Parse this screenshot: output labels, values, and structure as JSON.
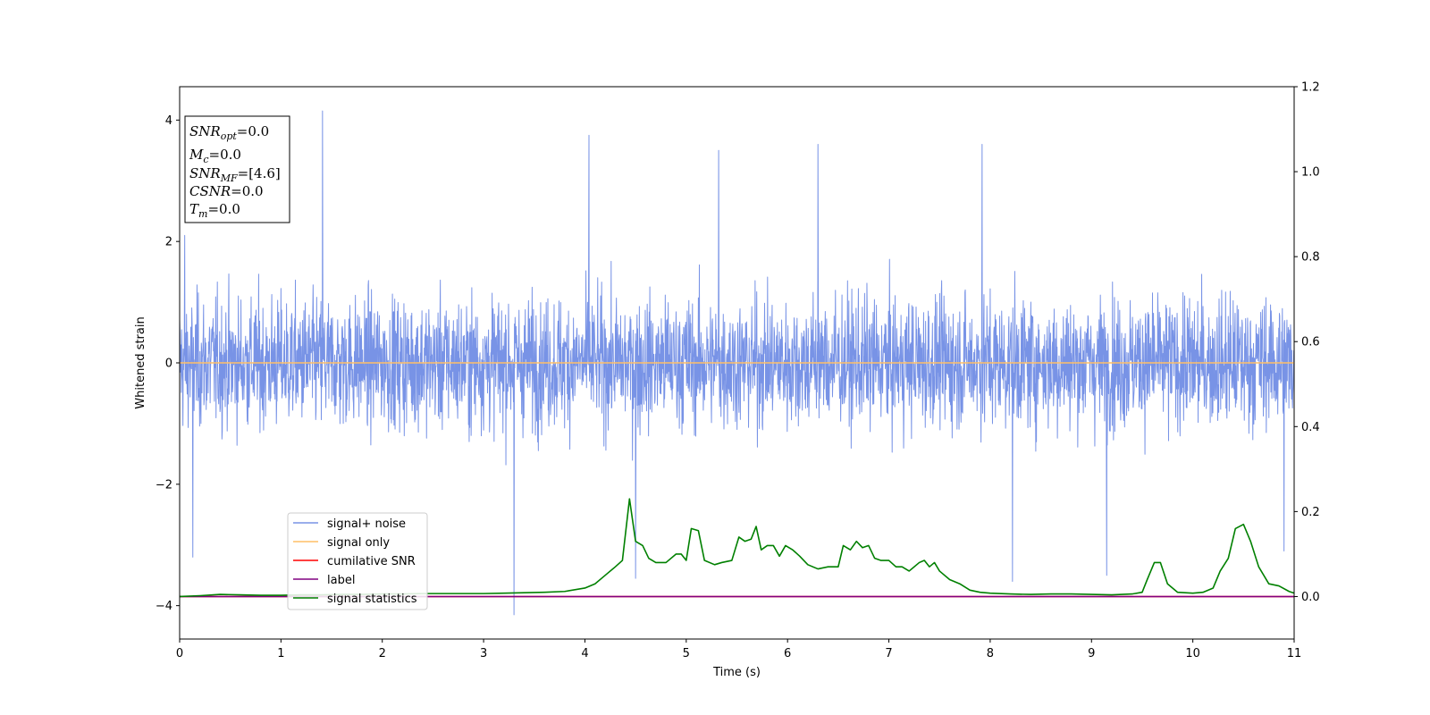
{
  "chart_data": {
    "type": "line",
    "xlabel": "Time (s)",
    "ylabel": "Whitened strain",
    "xlim": [
      0,
      11
    ],
    "ylim": [
      -4.55,
      4.55
    ],
    "y2lim": [
      -0.1,
      1.2
    ],
    "x_ticks": [
      "0",
      "1",
      "2",
      "3",
      "4",
      "5",
      "6",
      "7",
      "8",
      "9",
      "10",
      "11"
    ],
    "y_ticks": [
      "−4",
      "−2",
      "0",
      "2",
      "4"
    ],
    "y2_ticks": [
      "0.0",
      "0.2",
      "0.4",
      "0.6",
      "0.8",
      "1.0",
      "1.2"
    ],
    "grid": false,
    "legend_placement": "lower-left",
    "info_box": {
      "snr_opt": {
        "base": "SNR",
        "sub": "opt",
        "value": "=0.0"
      },
      "mc": {
        "base": "M",
        "sub": "c",
        "value": "=0.0"
      },
      "snr_mf": {
        "base": "SNR",
        "sub": "MF",
        "value": "=[4.6]"
      },
      "csnr": {
        "base": "CSNR",
        "value": "=0.0"
      },
      "tm": {
        "base": "T",
        "sub": "m",
        "value": "=0.0"
      }
    },
    "series": [
      {
        "name": "signal+ noise",
        "axis": "left",
        "color": "#7893e6",
        "description_values": "noise spanning roughly -2 to 2 with spikes",
        "spikes": [
          [
            0.05,
            2.1
          ],
          [
            0.13,
            -3.2
          ],
          [
            1.41,
            4.15
          ],
          [
            3.3,
            -4.15
          ],
          [
            4.04,
            3.75
          ],
          [
            4.5,
            -3.55
          ],
          [
            7.92,
            3.6
          ],
          [
            8.22,
            -3.6
          ],
          [
            9.15,
            -3.5
          ],
          [
            10.9,
            -3.1
          ],
          [
            5.32,
            3.5
          ],
          [
            6.3,
            3.6
          ]
        ]
      },
      {
        "name": "signal only",
        "axis": "left",
        "color": "#ffbf66",
        "x": [
          0,
          11
        ],
        "y": [
          0,
          0
        ]
      },
      {
        "name": "cumilative SNR",
        "axis": "right",
        "color": "#ff0000",
        "x": [
          0,
          11
        ],
        "y": [
          0,
          0
        ]
      },
      {
        "name": "label",
        "axis": "right",
        "color": "#800080",
        "x": [
          0,
          11
        ],
        "y": [
          0,
          0
        ]
      },
      {
        "name": "signal statistics",
        "axis": "right",
        "color": "#008000",
        "x": [
          0,
          0.2,
          0.4,
          0.6,
          0.8,
          1.0,
          1.2,
          1.4,
          1.6,
          1.8,
          2.0,
          2.2,
          2.4,
          2.6,
          2.8,
          3.0,
          3.2,
          3.4,
          3.6,
          3.8,
          4.0,
          4.1,
          4.2,
          4.3,
          4.37,
          4.44,
          4.5,
          4.57,
          4.63,
          4.7,
          4.8,
          4.9,
          4.95,
          5.0,
          5.05,
          5.12,
          5.18,
          5.28,
          5.35,
          5.45,
          5.52,
          5.58,
          5.64,
          5.69,
          5.74,
          5.8,
          5.86,
          5.92,
          5.98,
          6.05,
          6.12,
          6.2,
          6.3,
          6.4,
          6.5,
          6.55,
          6.62,
          6.68,
          6.74,
          6.8,
          6.86,
          6.92,
          7.0,
          7.07,
          7.13,
          7.2,
          7.3,
          7.35,
          7.4,
          7.45,
          7.5,
          7.6,
          7.7,
          7.8,
          7.9,
          8.0,
          8.2,
          8.4,
          8.6,
          8.8,
          9.0,
          9.2,
          9.4,
          9.5,
          9.55,
          9.62,
          9.68,
          9.75,
          9.85,
          10.0,
          10.1,
          10.2,
          10.27,
          10.35,
          10.42,
          10.5,
          10.57,
          10.65,
          10.75,
          10.85,
          10.95,
          11.0
        ],
        "y": [
          0.0,
          0.002,
          0.005,
          0.004,
          0.003,
          0.003,
          0.004,
          0.004,
          0.005,
          0.005,
          0.006,
          0.006,
          0.007,
          0.007,
          0.007,
          0.007,
          0.008,
          0.009,
          0.01,
          0.012,
          0.02,
          0.03,
          0.05,
          0.07,
          0.085,
          0.23,
          0.13,
          0.12,
          0.09,
          0.08,
          0.08,
          0.1,
          0.1,
          0.085,
          0.16,
          0.155,
          0.085,
          0.075,
          0.08,
          0.085,
          0.14,
          0.13,
          0.135,
          0.165,
          0.11,
          0.12,
          0.12,
          0.095,
          0.12,
          0.11,
          0.095,
          0.075,
          0.065,
          0.07,
          0.07,
          0.12,
          0.11,
          0.13,
          0.115,
          0.12,
          0.09,
          0.085,
          0.085,
          0.07,
          0.07,
          0.06,
          0.08,
          0.085,
          0.07,
          0.08,
          0.06,
          0.04,
          0.03,
          0.015,
          0.01,
          0.008,
          0.006,
          0.005,
          0.006,
          0.006,
          0.005,
          0.004,
          0.006,
          0.01,
          0.04,
          0.08,
          0.08,
          0.03,
          0.01,
          0.008,
          0.01,
          0.02,
          0.06,
          0.09,
          0.16,
          0.17,
          0.13,
          0.07,
          0.03,
          0.025,
          0.012,
          0.008
        ]
      }
    ]
  }
}
